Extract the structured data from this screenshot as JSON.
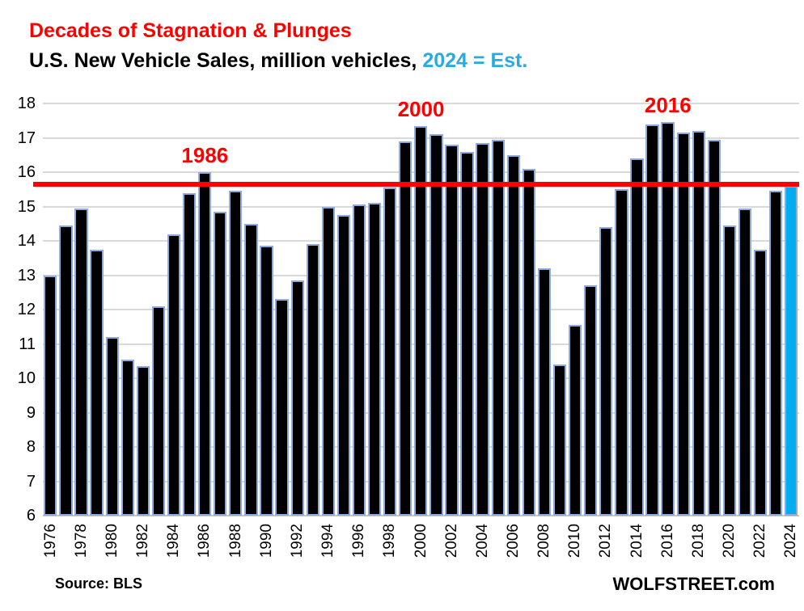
{
  "header": {
    "title_line1": "Decades of Stagnation & Plunges",
    "title_line2_prefix": "U.S. New Vehicle Sales, million vehicles,",
    "title_line2_highlight": "2024 = Est."
  },
  "footer": {
    "source": "Source: BLS",
    "brand": "WOLFSTREET.com"
  },
  "colors": {
    "bar_fill": "#000000",
    "bar_border": "#8faadc",
    "highlight_fill": "#00aeef",
    "reference_line": "#ff0000",
    "title_accent": "#ff0000",
    "subtitle_highlight": "#29abe2",
    "gridline": "#d9d9d9"
  },
  "chart_data": {
    "type": "bar",
    "title": "U.S. New Vehicle Sales, million vehicles, 2024 = Est.",
    "xlabel": "",
    "ylabel": "million vehicles",
    "ylim": [
      6,
      18
    ],
    "ytick_step": 1,
    "xtick_step": 2,
    "grid": "horizontal",
    "legend": "none",
    "x": [
      1976,
      1977,
      1978,
      1979,
      1980,
      1981,
      1982,
      1983,
      1984,
      1985,
      1986,
      1987,
      1988,
      1989,
      1990,
      1991,
      1992,
      1993,
      1994,
      1995,
      1996,
      1997,
      1998,
      1999,
      2000,
      2001,
      2002,
      2003,
      2004,
      2005,
      2006,
      2007,
      2008,
      2009,
      2010,
      2011,
      2012,
      2013,
      2014,
      2015,
      2016,
      2017,
      2018,
      2019,
      2020,
      2021,
      2022,
      2023,
      2024
    ],
    "values": [
      13.0,
      14.45,
      14.95,
      13.75,
      11.2,
      10.55,
      10.35,
      12.1,
      14.2,
      15.4,
      16.0,
      14.85,
      15.45,
      14.5,
      13.85,
      12.3,
      12.85,
      13.9,
      15.0,
      14.75,
      15.05,
      15.1,
      15.55,
      16.9,
      17.35,
      17.1,
      16.8,
      16.6,
      16.85,
      16.95,
      16.5,
      16.1,
      13.2,
      10.4,
      11.55,
      12.7,
      14.4,
      15.5,
      16.4,
      17.4,
      17.45,
      17.15,
      17.2,
      16.95,
      14.45,
      14.95,
      13.75,
      15.45,
      15.6
    ],
    "highlight_year": 2024,
    "reference_line": {
      "value": 15.65,
      "label": ""
    },
    "annotations": [
      {
        "year": 1986,
        "label": "1986"
      },
      {
        "year": 2000,
        "label": "2000"
      },
      {
        "year": 2016,
        "label": "2016"
      }
    ]
  }
}
